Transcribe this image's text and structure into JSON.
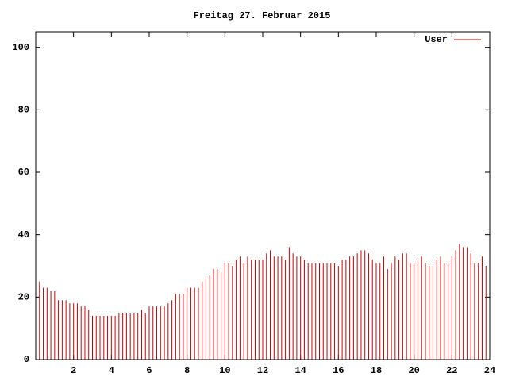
{
  "chart_data": {
    "type": "impulse",
    "title": "Freitag 27. Februar 2015",
    "x": [
      0,
      0.2,
      0.4,
      0.6,
      0.8,
      1,
      1.2,
      1.4,
      1.6,
      1.8,
      2,
      2.2,
      2.4,
      2.6,
      2.8,
      3,
      3.2,
      3.4,
      3.6,
      3.8,
      4,
      4.2,
      4.4,
      4.6,
      4.8,
      5,
      5.2,
      5.4,
      5.6,
      5.8,
      6,
      6.2,
      6.4,
      6.6,
      6.8,
      7,
      7.2,
      7.4,
      7.6,
      7.8,
      8,
      8.2,
      8.4,
      8.6,
      8.8,
      9,
      9.2,
      9.4,
      9.6,
      9.8,
      10,
      10.2,
      10.4,
      10.6,
      10.8,
      11,
      11.2,
      11.4,
      11.6,
      11.8,
      12,
      12.2,
      12.4,
      12.6,
      12.8,
      13,
      13.2,
      13.4,
      13.6,
      13.8,
      14,
      14.2,
      14.4,
      14.6,
      14.8,
      15,
      15.2,
      15.4,
      15.6,
      15.8,
      16,
      16.2,
      16.4,
      16.6,
      16.8,
      17,
      17.2,
      17.4,
      17.6,
      17.8,
      18,
      18.2,
      18.4,
      18.6,
      18.8,
      19,
      19.2,
      19.4,
      19.6,
      19.8,
      20,
      20.2,
      20.4,
      20.6,
      20.8,
      21,
      21.2,
      21.4,
      21.6,
      21.8,
      22,
      22.2,
      22.4,
      22.6,
      22.8,
      23,
      23.2,
      23.4,
      23.6,
      23.8
    ],
    "series": [
      {
        "name": "User",
        "color": "#cc0000",
        "values": [
          24,
          25,
          23,
          23,
          22,
          22,
          19,
          19,
          19,
          18,
          18,
          18,
          17,
          17,
          16,
          14,
          14,
          14,
          14,
          14,
          14,
          14,
          15,
          15,
          15,
          15,
          15,
          15,
          16,
          15,
          17,
          17,
          17,
          17,
          17,
          18,
          19,
          21,
          21,
          21,
          23,
          23,
          23,
          23,
          25,
          26,
          27,
          29,
          29,
          28,
          31,
          31,
          30,
          32,
          33,
          31,
          33,
          32,
          32,
          32,
          32,
          34,
          35,
          33,
          33,
          33,
          32,
          36,
          34,
          33,
          33,
          32,
          31,
          31,
          31,
          31,
          31,
          31,
          31,
          31,
          30,
          32,
          32,
          33,
          33,
          34,
          35,
          35,
          34,
          32,
          31,
          31,
          33,
          29,
          31,
          33,
          32,
          34,
          34,
          31,
          31,
          32,
          33,
          31,
          30,
          30,
          32,
          33,
          31,
          31,
          33,
          35,
          37,
          36,
          36,
          34,
          31,
          31,
          33,
          30
        ]
      }
    ],
    "xlim": [
      0,
      24
    ],
    "xticks": [
      2,
      4,
      6,
      8,
      10,
      12,
      14,
      16,
      18,
      20,
      22,
      24
    ],
    "ylim": [
      0,
      105
    ],
    "yticks": [
      0,
      20,
      40,
      60,
      80,
      100
    ],
    "legend": "top-right"
  }
}
